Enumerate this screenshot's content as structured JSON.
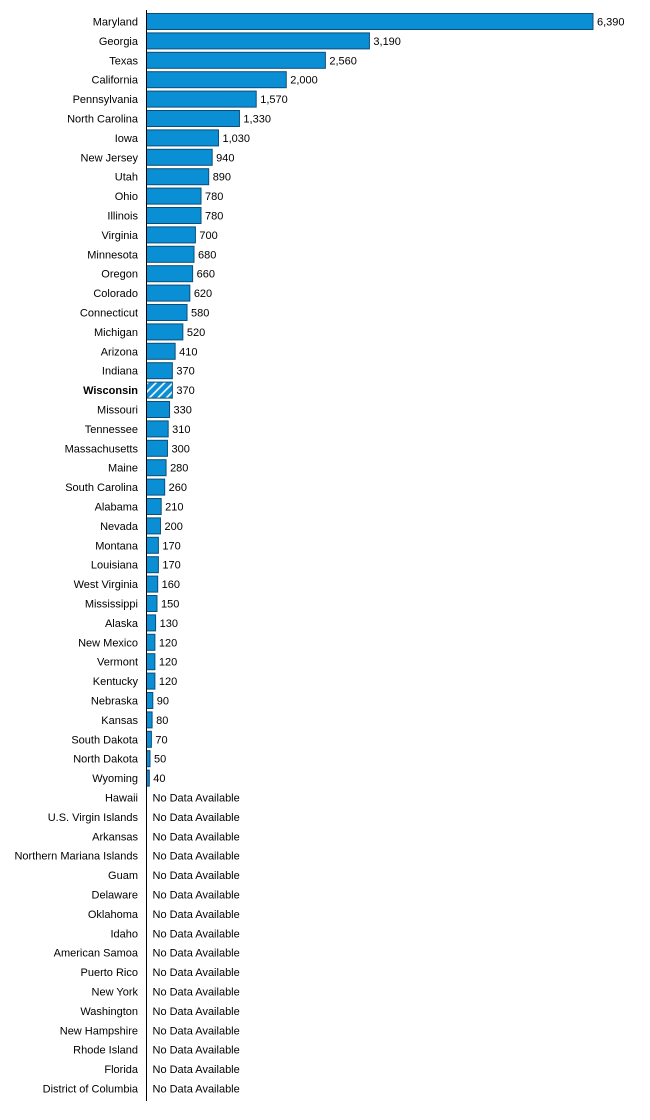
{
  "chart_data": {
    "type": "bar",
    "orientation": "horizontal",
    "title": "",
    "xlabel": "",
    "ylabel": "",
    "grid": false,
    "legend": "none",
    "bar_color": "#0a8fd4",
    "bar_border_color": "#0a4d7a",
    "highlight_category": "Wisconsin",
    "highlight_pattern": "diagonal-hatch",
    "no_data_label": "No Data Available",
    "categories": [
      "Maryland",
      "Georgia",
      "Texas",
      "California",
      "Pennsylvania",
      "North Carolina",
      "Iowa",
      "New Jersey",
      "Utah",
      "Ohio",
      "Illinois",
      "Virginia",
      "Minnesota",
      "Oregon",
      "Colorado",
      "Connecticut",
      "Michigan",
      "Arizona",
      "Indiana",
      "Wisconsin",
      "Missouri",
      "Tennessee",
      "Massachusetts",
      "Maine",
      "South Carolina",
      "Alabama",
      "Nevada",
      "Montana",
      "Louisiana",
      "West Virginia",
      "Mississippi",
      "Alaska",
      "New Mexico",
      "Vermont",
      "Kentucky",
      "Nebraska",
      "Kansas",
      "South Dakota",
      "North Dakota",
      "Wyoming",
      "Hawaii",
      "U.S. Virgin Islands",
      "Arkansas",
      "Northern Mariana Islands",
      "Guam",
      "Delaware",
      "Oklahoma",
      "Idaho",
      "American Samoa",
      "Puerto Rico",
      "New York",
      "Washington",
      "New Hampshire",
      "Rhode Island",
      "Florida",
      "District of Columbia"
    ],
    "values": [
      6390,
      3190,
      2560,
      2000,
      1570,
      1330,
      1030,
      940,
      890,
      780,
      780,
      700,
      680,
      660,
      620,
      580,
      520,
      410,
      370,
      370,
      330,
      310,
      300,
      280,
      260,
      210,
      200,
      170,
      170,
      160,
      150,
      130,
      120,
      120,
      120,
      90,
      80,
      70,
      50,
      40,
      null,
      null,
      null,
      null,
      null,
      null,
      null,
      null,
      null,
      null,
      null,
      null,
      null,
      null,
      null,
      null
    ],
    "value_labels": [
      "6,390",
      "3,190",
      "2,560",
      "2,000",
      "1,570",
      "1,330",
      "1,030",
      "940",
      "890",
      "780",
      "780",
      "700",
      "680",
      "660",
      "620",
      "580",
      "520",
      "410",
      "370",
      "370",
      "330",
      "310",
      "300",
      "280",
      "260",
      "210",
      "200",
      "170",
      "170",
      "160",
      "150",
      "130",
      "120",
      "120",
      "120",
      "90",
      "80",
      "70",
      "50",
      "40",
      "No Data Available",
      "No Data Available",
      "No Data Available",
      "No Data Available",
      "No Data Available",
      "No Data Available",
      "No Data Available",
      "No Data Available",
      "No Data Available",
      "No Data Available",
      "No Data Available",
      "No Data Available",
      "No Data Available",
      "No Data Available",
      "No Data Available",
      "No Data Available"
    ]
  }
}
